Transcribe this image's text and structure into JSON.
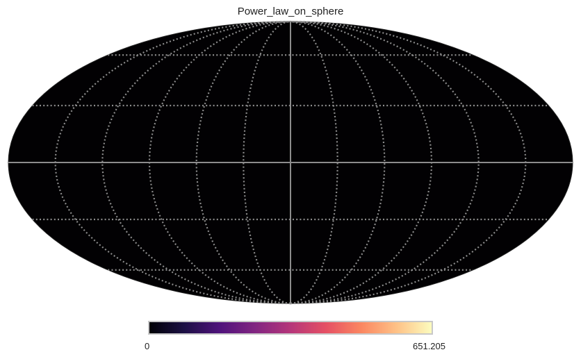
{
  "chart_data": {
    "type": "heatmap",
    "projection": "mollweide",
    "title": "Power_law_on_sphere",
    "map_values": "uniform minimum (entire sphere rendered at colormap low end)",
    "graticule": {
      "meridian_step_deg": 30,
      "parallel_step_deg": 30,
      "style": "dotted",
      "center_lines": "solid"
    },
    "colorbar": {
      "colormap": "magma",
      "min": 0,
      "max": 651.205,
      "min_label": "0",
      "max_label": "651.205",
      "orientation": "horizontal",
      "stops": [
        "#000004",
        "#1c1044",
        "#4f127b",
        "#812581",
        "#b5367a",
        "#e55064",
        "#fb8761",
        "#fec287",
        "#fcfdbf"
      ]
    },
    "colors": {
      "map_fill": "#020103",
      "graticule": "#8c8c8c",
      "frame": "#c8c8c8"
    }
  }
}
